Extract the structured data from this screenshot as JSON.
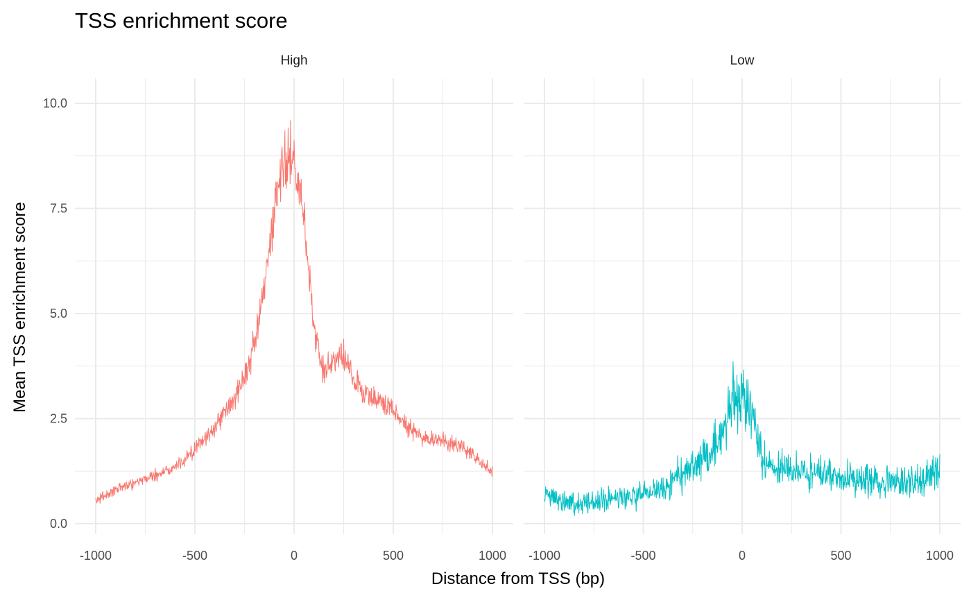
{
  "chart_data": {
    "type": "line",
    "title": "TSS enrichment score",
    "xlabel": "Distance from TSS (bp)",
    "ylabel": "Mean TSS enrichment score",
    "xlim": [
      -1000,
      1000
    ],
    "ylim": [
      0,
      10
    ],
    "x_ticks": [
      -1000,
      -500,
      0,
      500,
      1000
    ],
    "x_tick_labels": [
      "-1000",
      "-500",
      "0",
      "500",
      "1000"
    ],
    "y_ticks": [
      0,
      2.5,
      5,
      7.5,
      10
    ],
    "y_tick_labels": [
      "0.0",
      "2.5",
      "5.0",
      "7.5",
      "10.0"
    ],
    "grid": true,
    "legend": "none",
    "facets": [
      {
        "label": "High",
        "color": "#F8766D",
        "x": [
          -1000,
          -900,
          -800,
          -700,
          -600,
          -500,
          -400,
          -300,
          -250,
          -200,
          -150,
          -100,
          -75,
          -50,
          -25,
          0,
          25,
          50,
          75,
          100,
          150,
          200,
          250,
          300,
          350,
          400,
          500,
          600,
          700,
          800,
          900,
          1000
        ],
        "y": [
          0.55,
          0.8,
          1.0,
          1.15,
          1.35,
          1.75,
          2.3,
          3.0,
          3.5,
          4.2,
          5.6,
          7.2,
          8.3,
          8.8,
          8.6,
          8.9,
          8.0,
          7.4,
          5.9,
          4.6,
          3.6,
          3.9,
          4.0,
          3.5,
          3.1,
          3.0,
          2.7,
          2.2,
          2.0,
          1.9,
          1.7,
          1.2
        ]
      },
      {
        "label": "Low",
        "color": "#00BFC4",
        "x": [
          -1000,
          -900,
          -800,
          -700,
          -600,
          -500,
          -400,
          -300,
          -200,
          -150,
          -100,
          -75,
          -50,
          -25,
          0,
          25,
          50,
          75,
          100,
          150,
          200,
          300,
          400,
          500,
          600,
          700,
          800,
          900,
          950,
          1000
        ],
        "y": [
          0.7,
          0.55,
          0.5,
          0.55,
          0.6,
          0.7,
          0.85,
          1.2,
          1.55,
          1.8,
          2.2,
          2.55,
          2.75,
          2.9,
          2.8,
          2.8,
          2.6,
          2.2,
          1.5,
          1.3,
          1.3,
          1.25,
          1.15,
          1.1,
          1.05,
          1.0,
          1.0,
          1.0,
          1.15,
          1.25
        ]
      }
    ]
  }
}
